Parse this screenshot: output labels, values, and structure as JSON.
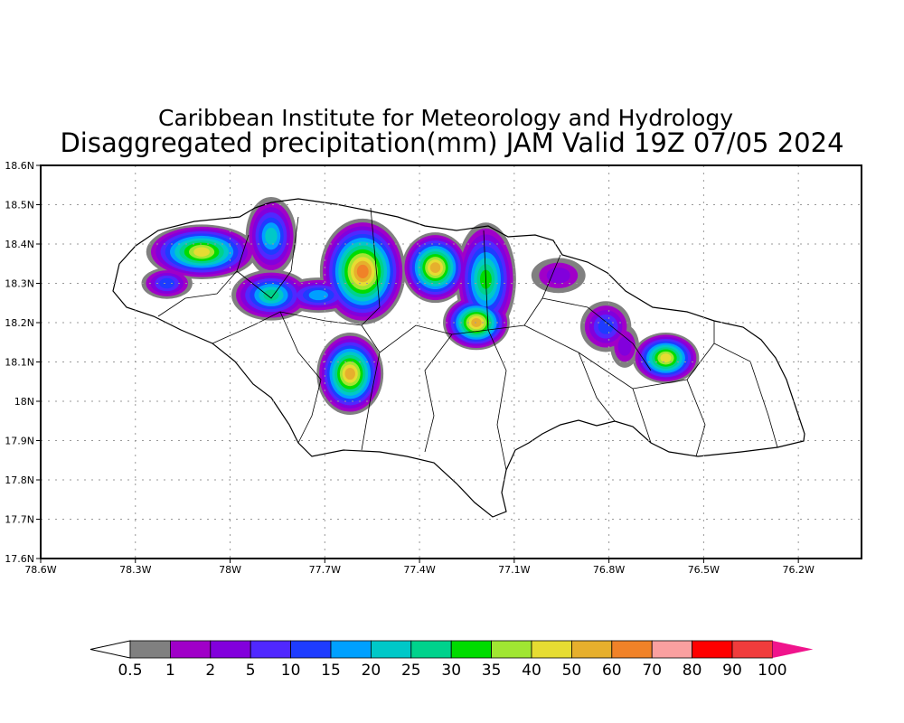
{
  "title": {
    "line1": "Caribbean Institute for Meteorology and Hydrology",
    "line2": "Disaggregated precipitation(mm) JAM Valid 19Z 07/05 2024"
  },
  "chart_data": {
    "type": "heatmap",
    "variable": "precipitation (mm)",
    "lon_range": [
      -78.6,
      -76.0
    ],
    "lat_range": [
      17.6,
      18.6
    ],
    "grid": true,
    "x_ticks": [
      "78.6W",
      "78.3W",
      "78W",
      "77.7W",
      "77.4W",
      "77.1W",
      "76.8W",
      "76.5W",
      "76.2W"
    ],
    "x_tick_values": [
      -78.6,
      -78.3,
      -78.0,
      -77.7,
      -77.4,
      -77.1,
      -76.8,
      -76.5,
      -76.2
    ],
    "y_ticks": [
      "18.6N",
      "18.5N",
      "18.4N",
      "18.3N",
      "18.2N",
      "18.1N",
      "18N",
      "17.9N",
      "17.8N",
      "17.7N",
      "17.6N"
    ],
    "y_tick_values": [
      18.6,
      18.5,
      18.4,
      18.3,
      18.2,
      18.1,
      18.0,
      17.9,
      17.8,
      17.7,
      17.6
    ],
    "colorbar": {
      "labels": [
        "0.5",
        "1",
        "2",
        "5",
        "10",
        "15",
        "20",
        "25",
        "30",
        "35",
        "40",
        "50",
        "60",
        "70",
        "80",
        "90",
        "100"
      ],
      "colors": [
        "#808080",
        "#a000c8",
        "#8200dc",
        "#5028ff",
        "#1e3cff",
        "#00a0ff",
        "#00c8c8",
        "#00d28c",
        "#00dc00",
        "#a0e632",
        "#e6dc32",
        "#e6af2d",
        "#f08228",
        "#faa0a0",
        "#ff0000",
        "#f03c3c"
      ],
      "over_color": "#f0148c",
      "under_color": "#ffffff"
    },
    "cells": [
      {
        "lon": -78.09,
        "lat": 18.38,
        "rlon": 0.17,
        "rlat": 0.065,
        "peak": 40
      },
      {
        "lon": -78.2,
        "lat": 18.3,
        "rlon": 0.075,
        "rlat": 0.035,
        "peak": 10
      },
      {
        "lon": -77.87,
        "lat": 18.42,
        "rlon": 0.075,
        "rlat": 0.095,
        "peak": 20
      },
      {
        "lon": -77.87,
        "lat": 18.27,
        "rlon": 0.12,
        "rlat": 0.06,
        "peak": 25
      },
      {
        "lon": -77.72,
        "lat": 18.27,
        "rlon": 0.12,
        "rlat": 0.04,
        "peak": 15
      },
      {
        "lon": -77.58,
        "lat": 18.33,
        "rlon": 0.13,
        "rlat": 0.13,
        "peak": 60
      },
      {
        "lon": -77.62,
        "lat": 18.07,
        "rlon": 0.1,
        "rlat": 0.1,
        "peak": 50
      },
      {
        "lon": -77.35,
        "lat": 18.34,
        "rlon": 0.1,
        "rlat": 0.085,
        "peak": 50
      },
      {
        "lon": -77.19,
        "lat": 18.31,
        "rlon": 0.09,
        "rlat": 0.14,
        "peak": 30
      },
      {
        "lon": -77.22,
        "lat": 18.2,
        "rlon": 0.1,
        "rlat": 0.065,
        "peak": 50
      },
      {
        "lon": -76.96,
        "lat": 18.32,
        "rlon": 0.08,
        "rlat": 0.04,
        "peak": 2
      },
      {
        "lon": -76.81,
        "lat": 18.19,
        "rlon": 0.075,
        "rlat": 0.06,
        "peak": 10
      },
      {
        "lon": -76.62,
        "lat": 18.11,
        "rlon": 0.1,
        "rlat": 0.06,
        "peak": 40
      },
      {
        "lon": -76.75,
        "lat": 18.14,
        "rlon": 0.04,
        "rlat": 0.05,
        "peak": 2
      }
    ]
  }
}
